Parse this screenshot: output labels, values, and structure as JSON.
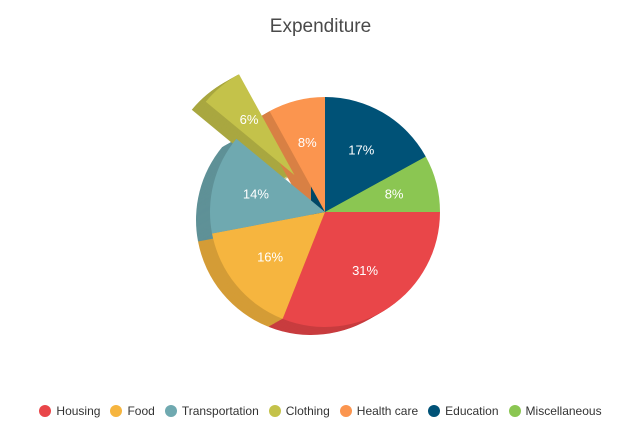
{
  "chart_data": {
    "type": "pie",
    "title": "Expenditure",
    "legend_position": "bottom",
    "exploded_category": "Clothing",
    "slices": [
      {
        "name": "Housing",
        "value": 31,
        "label": "31%",
        "color": "#e94649"
      },
      {
        "name": "Food",
        "value": 16,
        "label": "16%",
        "color": "#f6b53f"
      },
      {
        "name": "Transportation",
        "value": 14,
        "label": "14%",
        "color": "#6fa9b0"
      },
      {
        "name": "Clothing",
        "value": 6,
        "label": "6%",
        "color": "#c4c24a"
      },
      {
        "name": "Health care",
        "value": 8,
        "label": "8%",
        "color": "#fb954f"
      },
      {
        "name": "Education",
        "value": 17,
        "label": "17%",
        "color": "#005277"
      },
      {
        "name": "Miscellaneous",
        "value": 8,
        "label": "8%",
        "color": "#8bc652"
      }
    ]
  }
}
